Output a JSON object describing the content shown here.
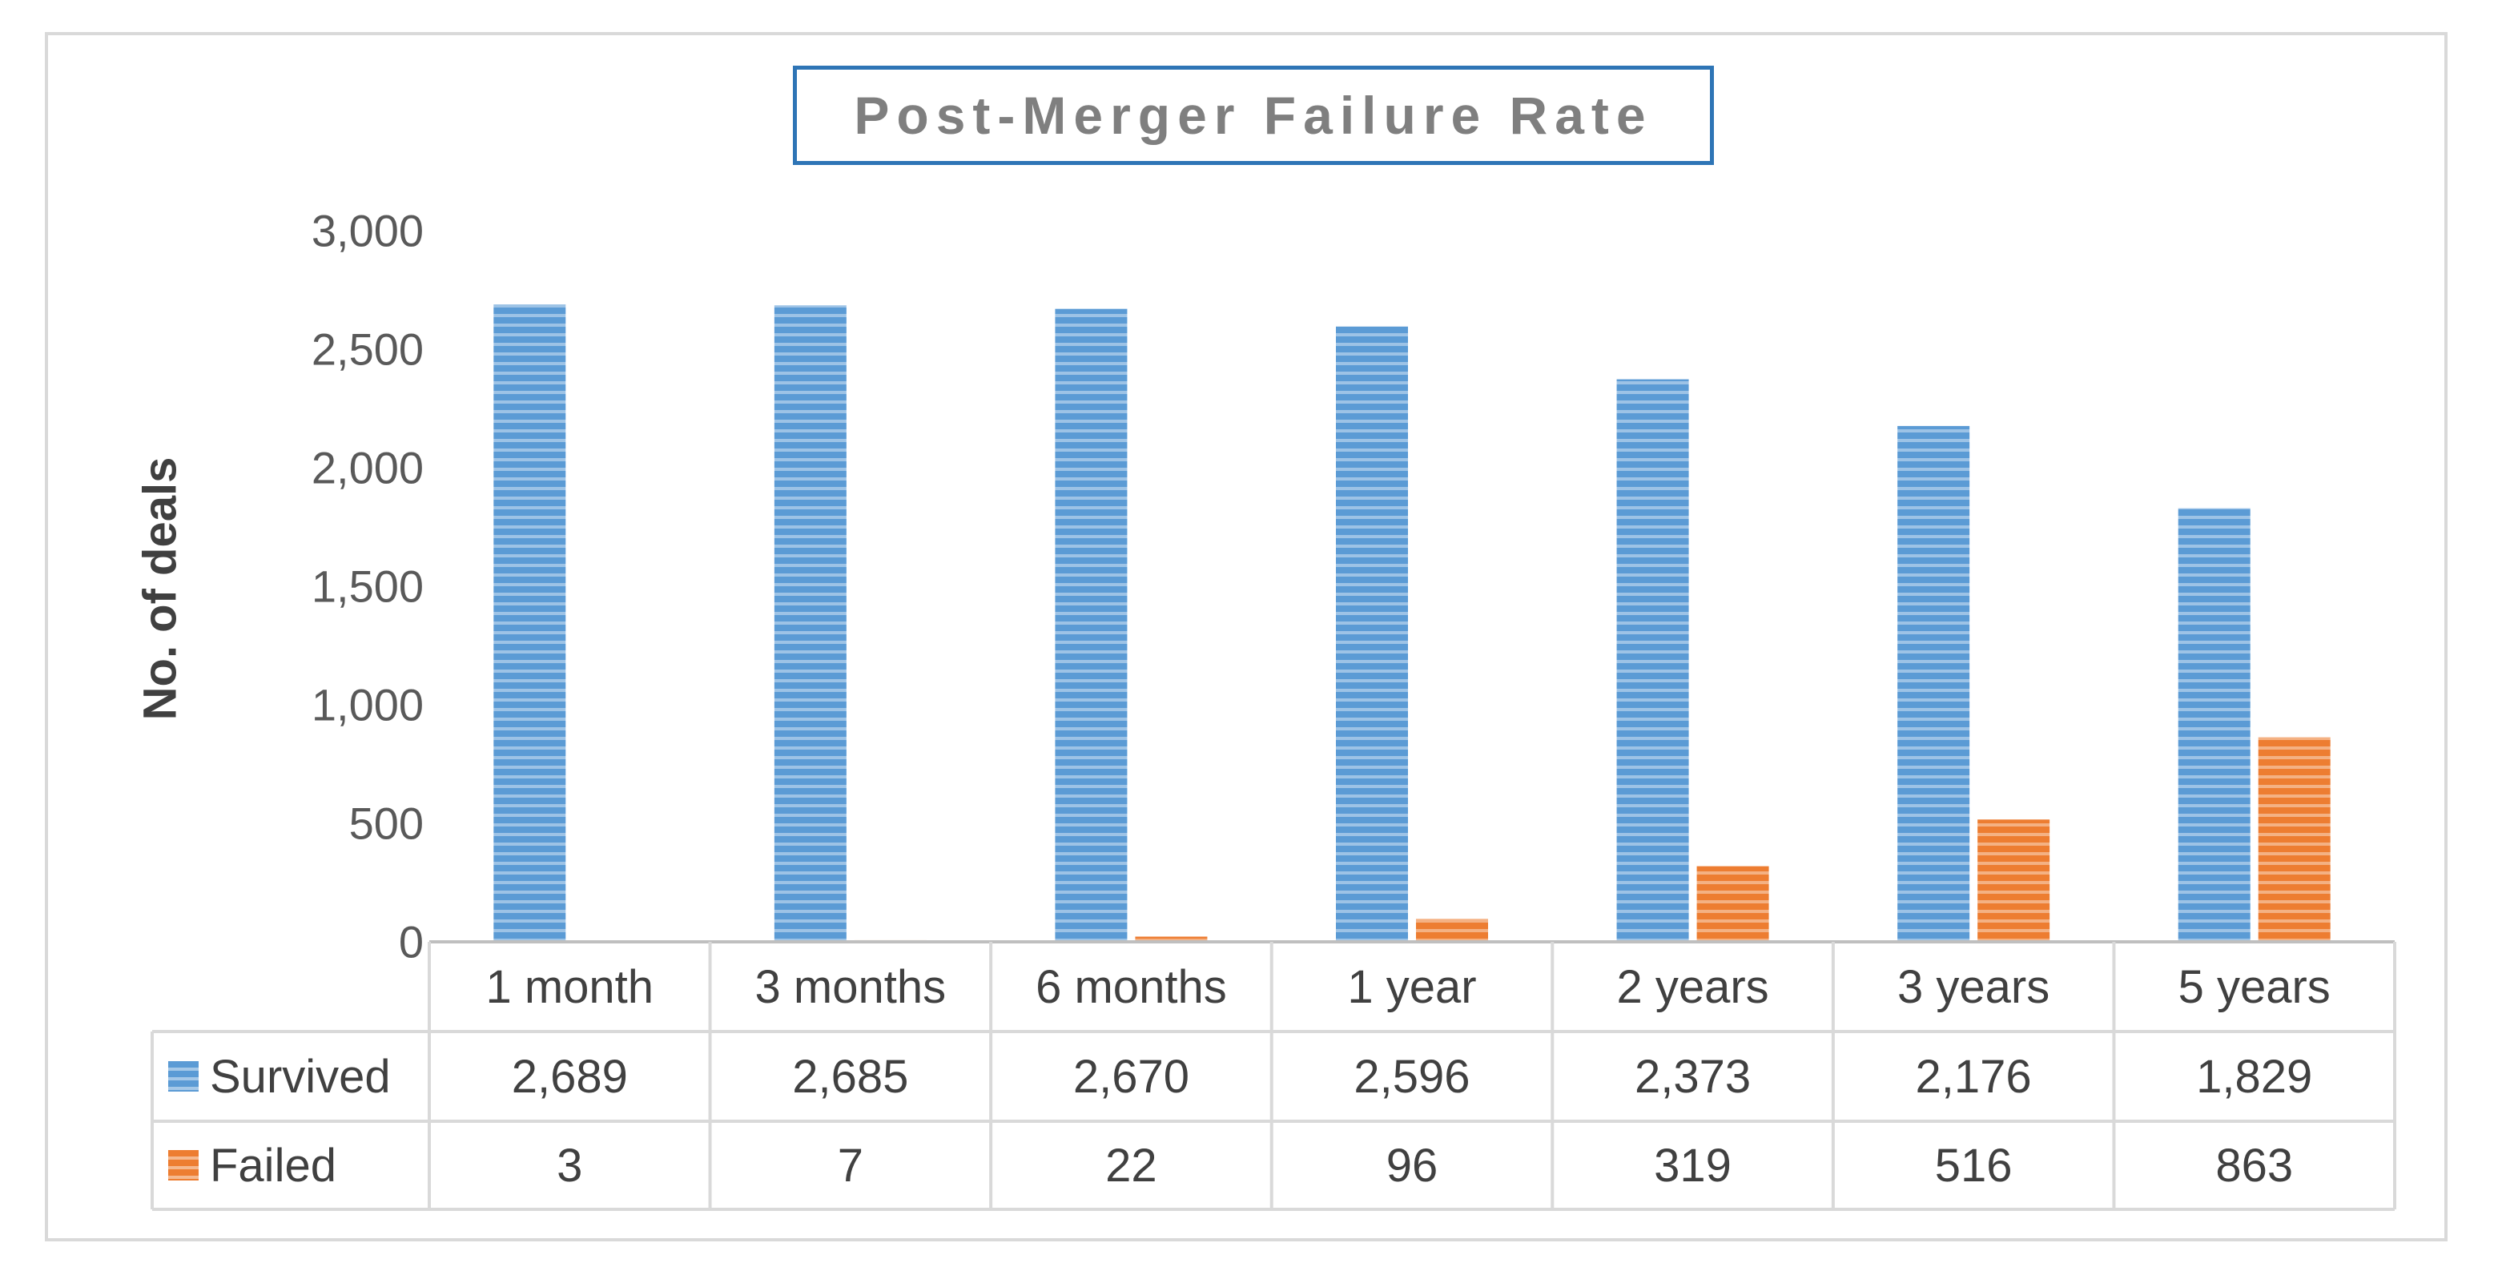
{
  "chart_data": {
    "type": "bar",
    "title": "Post-Merger Failure Rate",
    "ylabel": "No. of deals",
    "ylim": [
      0,
      3000
    ],
    "yticks": [
      "0",
      "500",
      "1,000",
      "1,500",
      "2,000",
      "2,500",
      "3,000"
    ],
    "categories": [
      "1 month",
      "3 months",
      "6 months",
      "1 year",
      "2 years",
      "3 years",
      "5 years"
    ],
    "series": [
      {
        "name": "Survived",
        "color": "#5b9bd5",
        "values": [
          2689,
          2685,
          2670,
          2596,
          2373,
          2176,
          1829
        ],
        "labels": [
          "2,689",
          "2,685",
          "2,670",
          "2,596",
          "2,373",
          "2,176",
          "1,829"
        ]
      },
      {
        "name": "Failed",
        "color": "#ed7d31",
        "values": [
          3,
          7,
          22,
          96,
          319,
          516,
          863
        ],
        "labels": [
          "3",
          "7",
          "22",
          "96",
          "319",
          "516",
          "863"
        ]
      }
    ],
    "legend": "data-table",
    "grid": false
  }
}
